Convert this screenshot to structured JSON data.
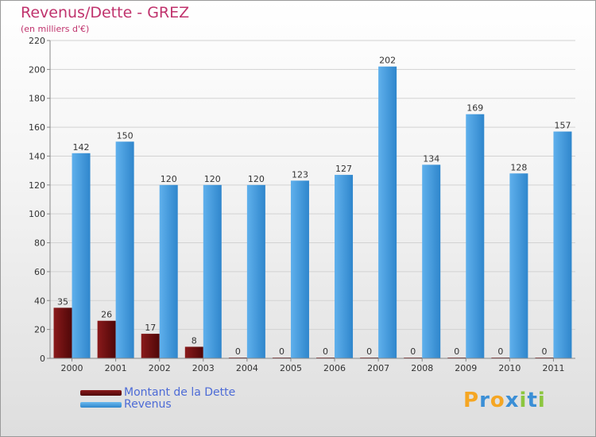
{
  "title": "Revenus/Dette - GREZ",
  "subtitle": "(en milliers d'€)",
  "logo": {
    "letters": [
      "P",
      "r",
      "o",
      "x",
      "i",
      "t",
      "i"
    ],
    "colors": [
      "#f5a623",
      "#3b8fd6",
      "#f5a623",
      "#3b8fd6",
      "#8cc63f",
      "#3b8fd6",
      "#8cc63f"
    ]
  },
  "legend": [
    {
      "label": "Montant de la Dette",
      "color": "#6b0f10"
    },
    {
      "label": "Revenus",
      "color": "#3c95d8"
    }
  ],
  "chart_data": {
    "type": "bar",
    "categories": [
      "2000",
      "2001",
      "2002",
      "2003",
      "2004",
      "2005",
      "2006",
      "2007",
      "2008",
      "2009",
      "2010",
      "2011"
    ],
    "series": [
      {
        "name": "Montant de la Dette",
        "color": "#6b0f10",
        "values": [
          35,
          26,
          17,
          8,
          0,
          0,
          0,
          0,
          0,
          0,
          0,
          0
        ]
      },
      {
        "name": "Revenus",
        "color": "#3c95d8",
        "values": [
          142,
          150,
          120,
          120,
          120,
          123,
          127,
          202,
          134,
          169,
          128,
          157
        ]
      }
    ],
    "ylim": [
      0,
      220
    ],
    "yticks": [
      0,
      20,
      40,
      60,
      80,
      100,
      120,
      140,
      160,
      180,
      200,
      220
    ],
    "grid": true,
    "legend_position": "bottom-left"
  }
}
